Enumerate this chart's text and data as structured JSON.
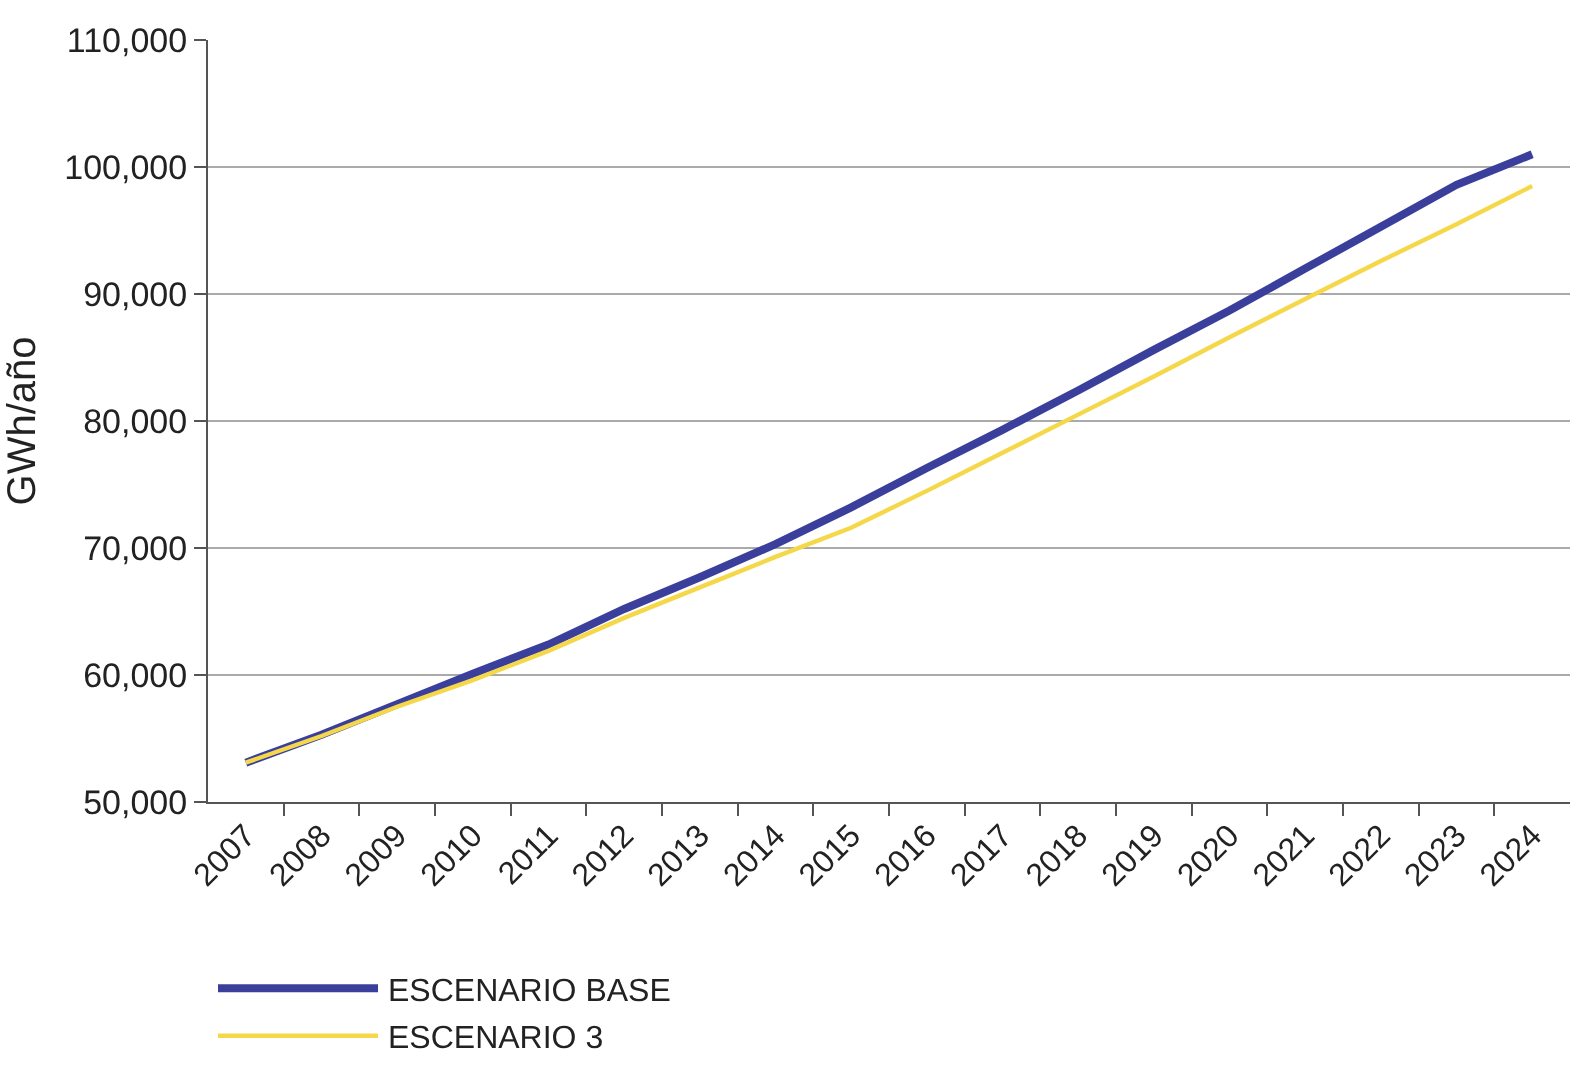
{
  "chart_data": {
    "type": "line",
    "ylabel": "GWh/año",
    "categories": [
      "2007",
      "2008",
      "2009",
      "2010",
      "2011",
      "2012",
      "2013",
      "2014",
      "2015",
      "2016",
      "2017",
      "2018",
      "2019",
      "2020",
      "2021",
      "2022",
      "2023",
      "2024"
    ],
    "series": [
      {
        "name": "ESCENARIO BASE",
        "color": "#3b3f9c",
        "values": [
          53100,
          55300,
          57700,
          60100,
          62400,
          65200,
          67700,
          70300,
          73200,
          76300,
          79300,
          82400,
          85600,
          88700,
          92000,
          95300,
          98600,
          101000
        ]
      },
      {
        "name": "ESCENARIO 3",
        "color": "#f5d84a",
        "values": [
          53100,
          55200,
          57500,
          59600,
          61900,
          64500,
          66900,
          69300,
          71600,
          74500,
          77500,
          80500,
          83500,
          86600,
          89600,
          92600,
          95500,
          98500
        ]
      }
    ],
    "ylim": [
      50000,
      110000
    ],
    "yticks": [
      {
        "value": 50000,
        "label": "50,000"
      },
      {
        "value": 60000,
        "label": "60,000"
      },
      {
        "value": 70000,
        "label": "70,000"
      },
      {
        "value": 80000,
        "label": "80,000"
      },
      {
        "value": 90000,
        "label": "90,000"
      },
      {
        "value": 100000,
        "label": "100,000"
      },
      {
        "value": 110000,
        "label": "110,000"
      }
    ],
    "grid": "y",
    "legend": "bottom",
    "line_style": "solid"
  }
}
